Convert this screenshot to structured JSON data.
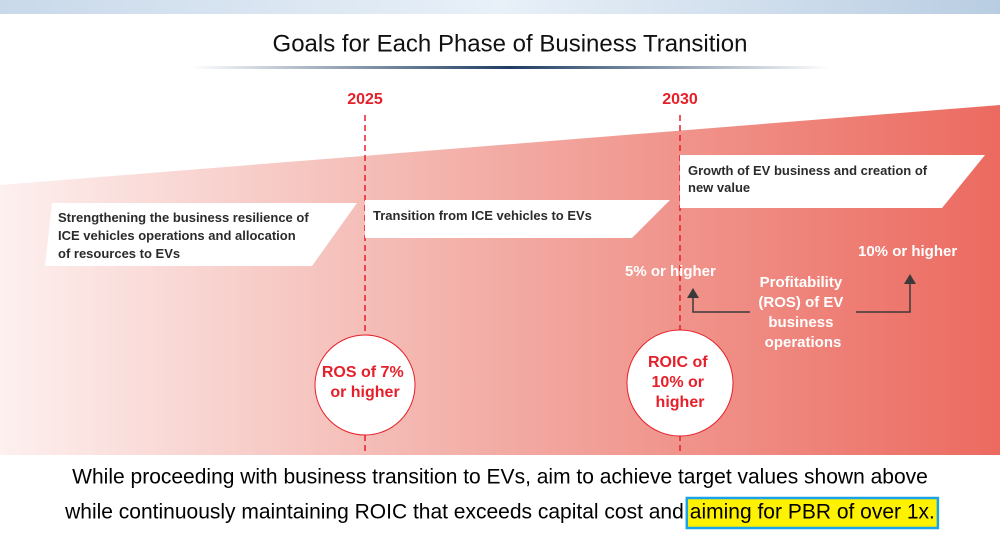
{
  "title": "Goals for Each Phase of Business Transition",
  "years": [
    "2025",
    "2030"
  ],
  "phases": [
    {
      "lines": [
        "Strengthening the business resilience of",
        "ICE vehicles operations and allocation",
        "of resources to EVs"
      ]
    },
    {
      "lines": [
        "Transition from ICE vehicles to EVs"
      ]
    },
    {
      "lines": [
        "Growth of EV business and creation of",
        "new value"
      ]
    }
  ],
  "targets": [
    {
      "lines": [
        "ROS of 7%",
        "or higher"
      ]
    },
    {
      "lines": [
        "ROIC of",
        "10% or",
        "higher"
      ]
    }
  ],
  "ev_ros": {
    "first": "5% or higher",
    "later": "10% or higher",
    "label": [
      "Profitability",
      "(ROS) of EV",
      "business",
      "operations"
    ]
  },
  "footer": {
    "line1": "While proceeding with business transition to EVs, aim to achieve target values shown above",
    "line2": "while continuously maintaining ROIC that exceeds capital cost and",
    "highlight": "aiming for PBR of over 1x."
  }
}
